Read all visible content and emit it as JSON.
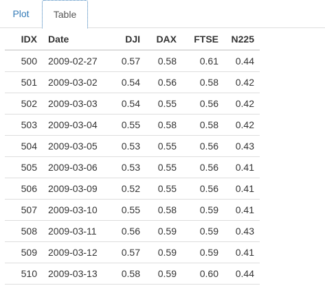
{
  "tabs": {
    "plot": "Plot",
    "table": "Table"
  },
  "colors": {
    "link": "#337ab7",
    "border": "#dddddd"
  },
  "table": {
    "headers": {
      "idx": "IDX",
      "date": "Date",
      "dji": "DJI",
      "dax": "DAX",
      "ftse": "FTSE",
      "n225": "N225"
    },
    "rows": [
      {
        "idx": "500",
        "date": "2009-02-27",
        "dji": "0.57",
        "dax": "0.58",
        "ftse": "0.61",
        "n225": "0.44"
      },
      {
        "idx": "501",
        "date": "2009-03-02",
        "dji": "0.54",
        "dax": "0.56",
        "ftse": "0.58",
        "n225": "0.42"
      },
      {
        "idx": "502",
        "date": "2009-03-03",
        "dji": "0.54",
        "dax": "0.55",
        "ftse": "0.56",
        "n225": "0.42"
      },
      {
        "idx": "503",
        "date": "2009-03-04",
        "dji": "0.55",
        "dax": "0.58",
        "ftse": "0.58",
        "n225": "0.42"
      },
      {
        "idx": "504",
        "date": "2009-03-05",
        "dji": "0.53",
        "dax": "0.55",
        "ftse": "0.56",
        "n225": "0.43"
      },
      {
        "idx": "505",
        "date": "2009-03-06",
        "dji": "0.53",
        "dax": "0.55",
        "ftse": "0.56",
        "n225": "0.41"
      },
      {
        "idx": "506",
        "date": "2009-03-09",
        "dji": "0.52",
        "dax": "0.55",
        "ftse": "0.56",
        "n225": "0.41"
      },
      {
        "idx": "507",
        "date": "2009-03-10",
        "dji": "0.55",
        "dax": "0.58",
        "ftse": "0.59",
        "n225": "0.41"
      },
      {
        "idx": "508",
        "date": "2009-03-11",
        "dji": "0.56",
        "dax": "0.59",
        "ftse": "0.59",
        "n225": "0.43"
      },
      {
        "idx": "509",
        "date": "2009-03-12",
        "dji": "0.57",
        "dax": "0.59",
        "ftse": "0.59",
        "n225": "0.41"
      },
      {
        "idx": "510",
        "date": "2009-03-13",
        "dji": "0.58",
        "dax": "0.59",
        "ftse": "0.60",
        "n225": "0.44"
      }
    ]
  }
}
